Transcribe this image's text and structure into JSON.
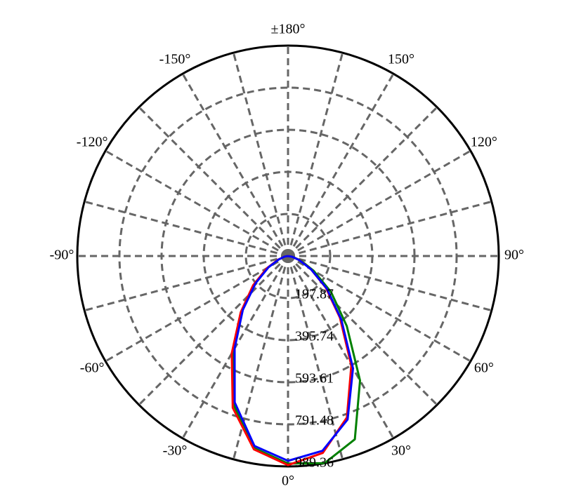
{
  "chart_data": {
    "type": "polar",
    "x": [
      -90,
      -80,
      -70,
      -60,
      -50,
      -40,
      -30,
      -20,
      -10,
      0,
      10,
      20,
      30,
      40,
      50,
      60,
      70,
      80,
      90
    ],
    "series": [
      {
        "color": "#008000",
        "values": [
          0,
          16,
          46,
          109,
          204,
          336,
          511,
          745,
          917,
          976,
          989,
          917,
          676,
          429,
          264,
          139,
          66,
          23,
          0
        ]
      },
      {
        "color": "#ff0000",
        "values": [
          0,
          16,
          50,
          115,
          214,
          346,
          528,
          759,
          923,
          983,
          940,
          808,
          594,
          379,
          231,
          125,
          59,
          20,
          0
        ]
      },
      {
        "color": "#0000ff",
        "values": [
          0,
          16,
          46,
          106,
          198,
          330,
          501,
          732,
          907,
          963,
          930,
          818,
          610,
          389,
          237,
          125,
          56,
          20,
          0
        ]
      }
    ],
    "rlim": [
      0,
      989.36
    ],
    "rticks": [
      197.87,
      395.74,
      593.61,
      791.48,
      989.36
    ],
    "thetaticks": [
      {
        "value": 0,
        "label": "0°"
      },
      {
        "value": 30,
        "label": "30°"
      },
      {
        "value": 60,
        "label": "60°"
      },
      {
        "value": 90,
        "label": "90°"
      },
      {
        "value": 120,
        "label": "120°"
      },
      {
        "value": 150,
        "label": "150°"
      },
      {
        "value": 180,
        "label": "±180°"
      },
      {
        "value": -150,
        "label": "-150°"
      },
      {
        "value": -120,
        "label": "-120°"
      },
      {
        "value": -90,
        "label": "-90°"
      },
      {
        "value": -60,
        "label": "-60°"
      },
      {
        "value": -30,
        "label": "-30°"
      }
    ],
    "theta_grid_step": 15,
    "grid": true
  }
}
